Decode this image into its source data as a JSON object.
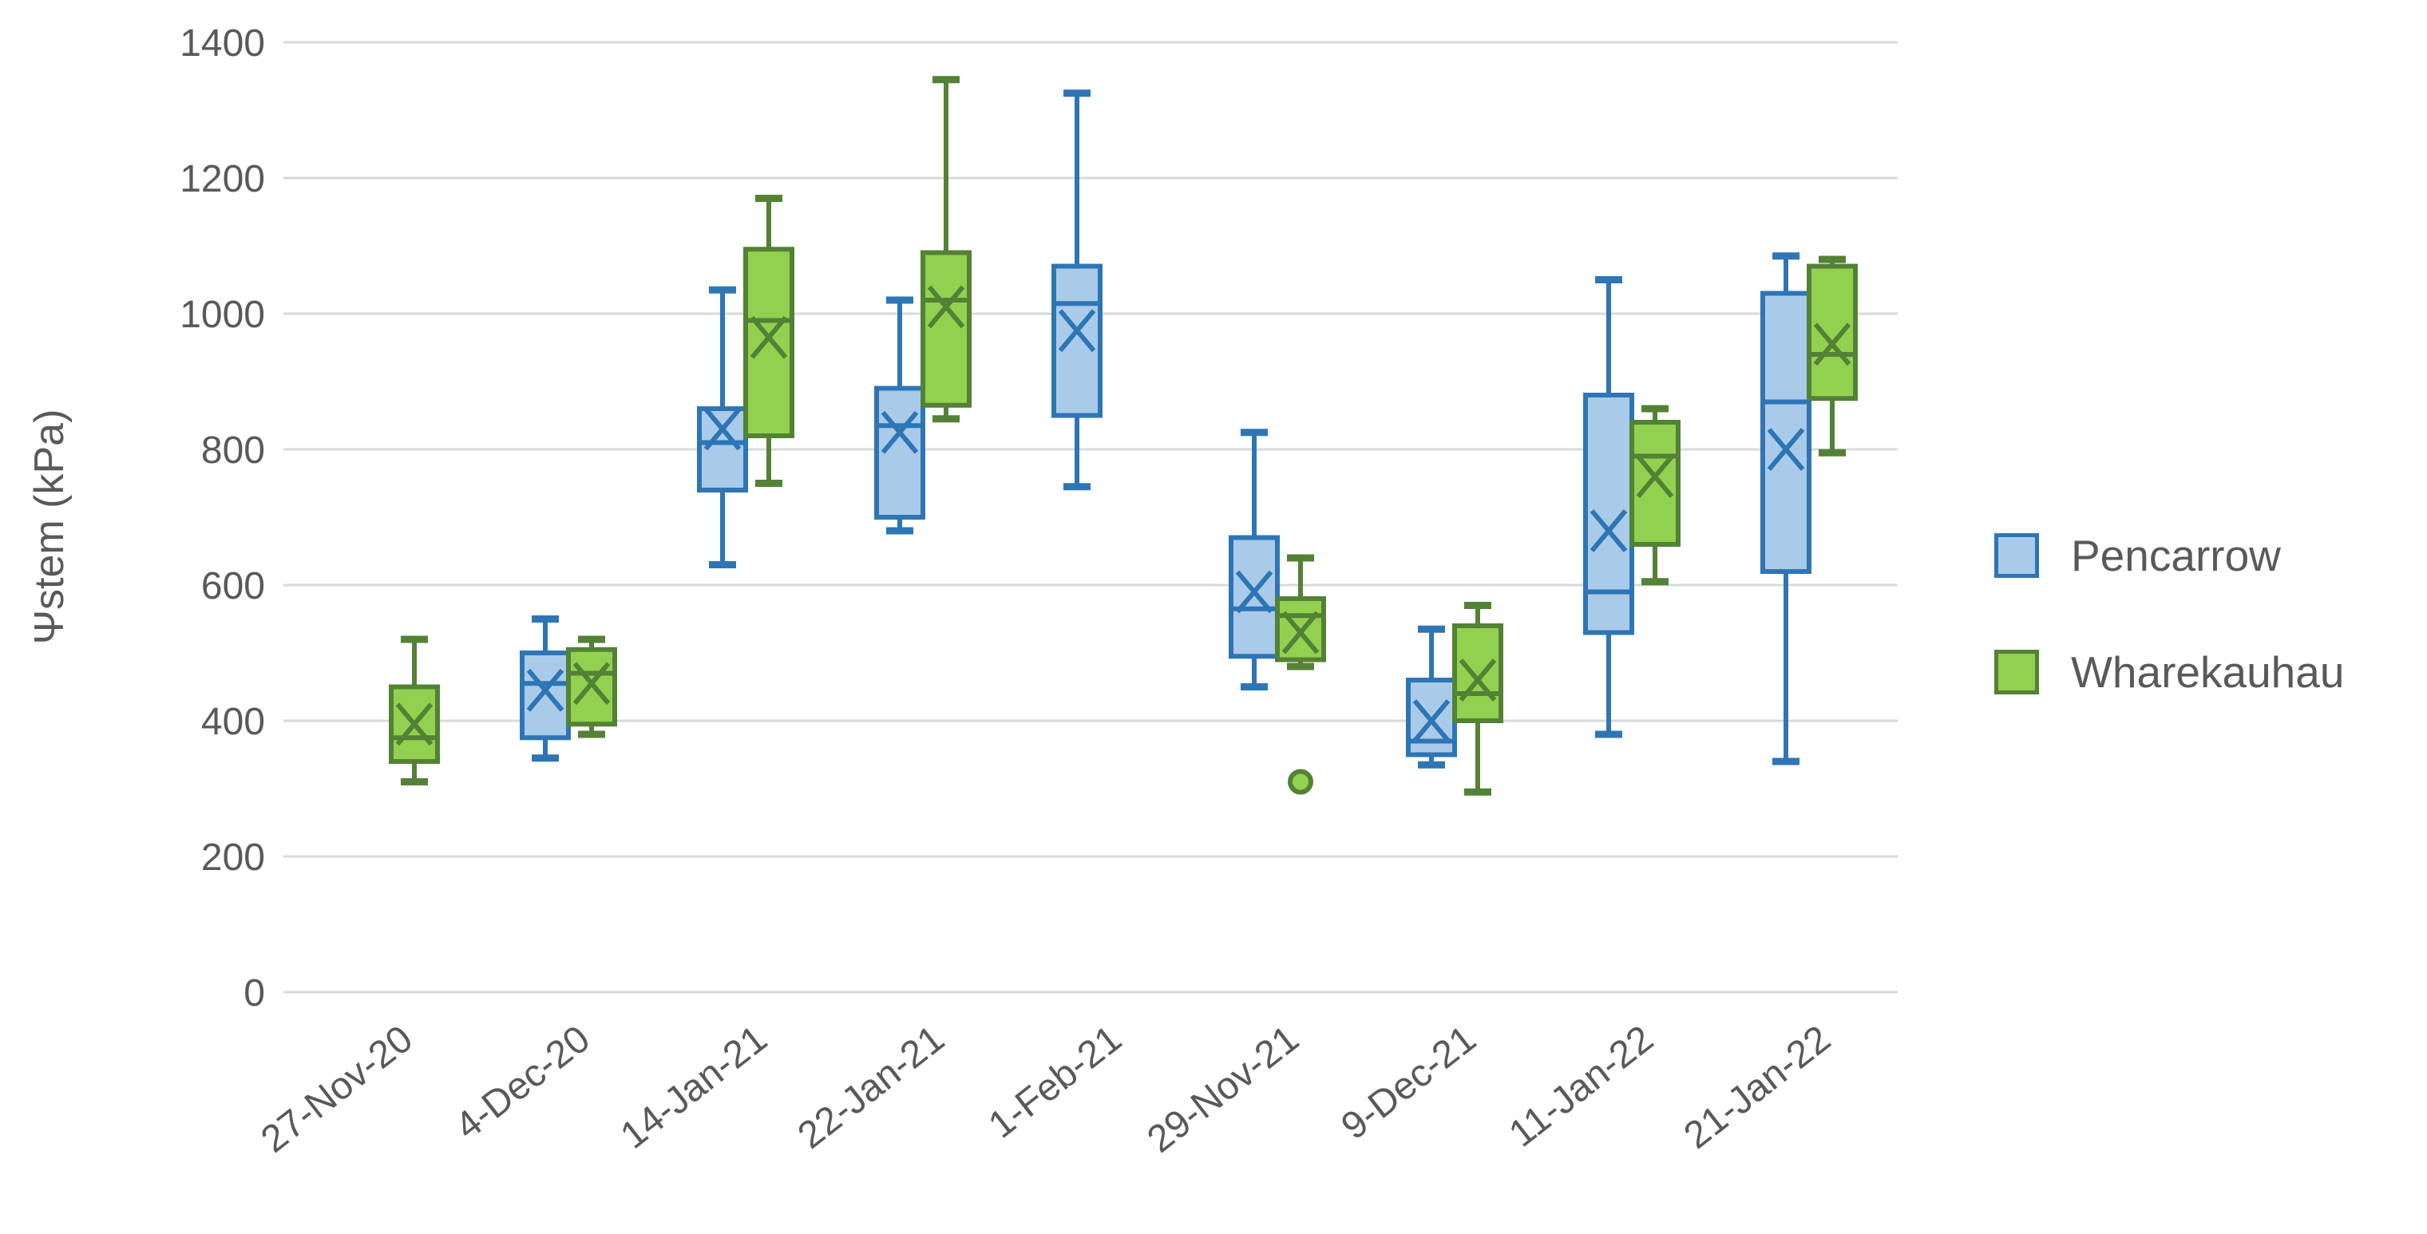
{
  "chart_data": {
    "type": "boxplot",
    "title": "",
    "xlabel": "",
    "ylabel": "Ψstem (kPa)",
    "ylim": [
      0,
      1400
    ],
    "yticks": [
      0,
      200,
      400,
      600,
      800,
      1000,
      1200,
      1400
    ],
    "grid": "horizontal-only",
    "background": "#FFFFFF",
    "gridline_color": "#D9D9D9",
    "text_color": "#595959",
    "legend_position": "right",
    "mean_marker": "x",
    "categories": [
      "27-Nov-20",
      "4-Dec-20",
      "14-Jan-21",
      "22-Jan-21",
      "1-Feb-21",
      "29-Nov-21",
      "9-Dec-21",
      "11-Jan-22",
      "21-Jan-22"
    ],
    "series": [
      {
        "name": "Pencarrow",
        "fill": "#A9CBE9",
        "stroke": "#2E75B6",
        "boxes": [
          null,
          {
            "min": 345,
            "q1": 375,
            "median": 455,
            "mean": 445,
            "q3": 500,
            "max": 550
          },
          {
            "min": 630,
            "q1": 740,
            "median": 810,
            "mean": 830,
            "q3": 860,
            "max": 1035
          },
          {
            "min": 680,
            "q1": 700,
            "median": 835,
            "mean": 825,
            "q3": 890,
            "max": 1020
          },
          {
            "min": 745,
            "q1": 850,
            "median": 1015,
            "mean": 975,
            "q3": 1070,
            "max": 1325
          },
          {
            "min": 450,
            "q1": 495,
            "median": 565,
            "mean": 590,
            "q3": 670,
            "max": 825
          },
          {
            "min": 335,
            "q1": 350,
            "median": 370,
            "mean": 400,
            "q3": 460,
            "max": 535
          },
          {
            "min": 380,
            "q1": 530,
            "median": 590,
            "mean": 680,
            "q3": 880,
            "max": 1050
          },
          {
            "min": 340,
            "q1": 620,
            "median": 870,
            "mean": 800,
            "q3": 1030,
            "max": 1085
          }
        ]
      },
      {
        "name": "Wharekauhau",
        "fill": "#92D050",
        "stroke": "#538135",
        "boxes": [
          {
            "min": 310,
            "q1": 340,
            "median": 375,
            "mean": 395,
            "q3": 450,
            "max": 520
          },
          {
            "min": 380,
            "q1": 395,
            "median": 470,
            "mean": 455,
            "q3": 505,
            "max": 520
          },
          {
            "min": 750,
            "q1": 820,
            "median": 990,
            "mean": 965,
            "q3": 1095,
            "max": 1170
          },
          {
            "min": 845,
            "q1": 865,
            "median": 1020,
            "mean": 1010,
            "q3": 1090,
            "max": 1345
          },
          null,
          {
            "min": 480,
            "q1": 490,
            "median": 555,
            "mean": 530,
            "q3": 580,
            "max": 640,
            "outliers": [
              310
            ]
          },
          {
            "min": 295,
            "q1": 400,
            "median": 440,
            "mean": 460,
            "q3": 540,
            "max": 570
          },
          {
            "min": 605,
            "q1": 660,
            "median": 790,
            "mean": 760,
            "q3": 840,
            "max": 860
          },
          {
            "min": 795,
            "q1": 875,
            "median": 940,
            "mean": 955,
            "q3": 1070,
            "max": 1080
          }
        ]
      }
    ]
  }
}
